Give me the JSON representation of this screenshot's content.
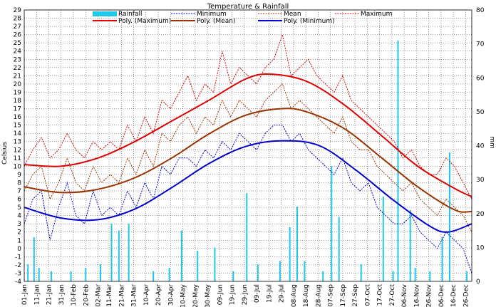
{
  "colors": {
    "rainfall": "#1ec8e8",
    "minimum": "#0000cc",
    "mean": "#993300",
    "maximum": "#cc0000",
    "poly_maximum": "#dd0000",
    "poly_mean": "#993300",
    "poly_minimum": "#0000cc",
    "grid": "#000000"
  },
  "chart_data": {
    "type": "line",
    "title": "Temperature & Rainfall",
    "ylabel": "Celsius",
    "y2label": "mm",
    "ylim": [
      -4,
      29
    ],
    "y2lim": [
      0,
      80
    ],
    "y_ticks": [
      -4,
      -3,
      -2,
      -1,
      0,
      1,
      2,
      3,
      4,
      5,
      6,
      7,
      8,
      9,
      10,
      11,
      12,
      13,
      14,
      15,
      16,
      17,
      18,
      19,
      20,
      21,
      22,
      23,
      24,
      25,
      26,
      27,
      28,
      29
    ],
    "y2_ticks": [
      0,
      10,
      20,
      30,
      40,
      50,
      60,
      70,
      80
    ],
    "x_ticks": [
      {
        "label": "01-Jan",
        "day": 0
      },
      {
        "label": "11-Jan",
        "day": 10
      },
      {
        "label": "21-Jan",
        "day": 20
      },
      {
        "label": "31-Jan",
        "day": 30
      },
      {
        "label": "10-Feb",
        "day": 40
      },
      {
        "label": "20-Feb",
        "day": 50
      },
      {
        "label": "02-Mar",
        "day": 60
      },
      {
        "label": "11-Mar",
        "day": 69
      },
      {
        "label": "21-Mar",
        "day": 79
      },
      {
        "label": "31-Mar",
        "day": 89
      },
      {
        "label": "10-Apr",
        "day": 99
      },
      {
        "label": "20-Apr",
        "day": 109
      },
      {
        "label": "30-Apr",
        "day": 119
      },
      {
        "label": "10-May",
        "day": 129
      },
      {
        "label": "20-May",
        "day": 139
      },
      {
        "label": "30-May",
        "day": 149
      },
      {
        "label": "09-Jun",
        "day": 159
      },
      {
        "label": "19-Jun",
        "day": 169
      },
      {
        "label": "29-Jun",
        "day": 179
      },
      {
        "label": "09-Jul",
        "day": 189
      },
      {
        "label": "19-Jul",
        "day": 199
      },
      {
        "label": "29-Jul",
        "day": 209
      },
      {
        "label": "08-Aug",
        "day": 219
      },
      {
        "label": "18-Aug",
        "day": 229
      },
      {
        "label": "28-Aug",
        "day": 239
      },
      {
        "label": "07-Sep",
        "day": 249
      },
      {
        "label": "17-Sep",
        "day": 259
      },
      {
        "label": "27-Sep",
        "day": 269
      },
      {
        "label": "07-Oct",
        "day": 279
      },
      {
        "label": "17-Oct",
        "day": 289
      },
      {
        "label": "27-Oct",
        "day": 299
      },
      {
        "label": "06-Nov",
        "day": 309
      },
      {
        "label": "16-Nov",
        "day": 319
      },
      {
        "label": "26-Nov",
        "day": 329
      },
      {
        "label": "06-Dec",
        "day": 339
      },
      {
        "label": "16-Dec",
        "day": 349
      },
      {
        "label": "26-Dec",
        "day": 359
      }
    ],
    "legend": [
      {
        "key": "rainfall",
        "label": "Rainfall",
        "style": "bar"
      },
      {
        "key": "minimum",
        "label": "Minimum",
        "style": "dotted"
      },
      {
        "key": "mean",
        "label": "Mean",
        "style": "dotted"
      },
      {
        "key": "maximum",
        "label": "Maximum",
        "style": "dotted"
      },
      {
        "key": "poly_maximum",
        "label": "Poly. (Maximum)",
        "style": "solid"
      },
      {
        "key": "poly_mean",
        "label": "Poly. (Mean)",
        "style": "solid"
      },
      {
        "key": "poly_minimum",
        "label": "Poly. (Minimum)",
        "style": "solid"
      }
    ],
    "legend_position": "top",
    "grid": true,
    "series_daily_sampled": {
      "day": [
        0,
        7,
        14,
        21,
        28,
        35,
        42,
        49,
        56,
        63,
        70,
        77,
        84,
        91,
        98,
        105,
        112,
        119,
        126,
        133,
        140,
        147,
        154,
        161,
        168,
        175,
        182,
        189,
        196,
        203,
        210,
        217,
        224,
        231,
        238,
        245,
        252,
        259,
        266,
        273,
        280,
        287,
        294,
        301,
        308,
        315,
        322,
        329,
        336,
        343,
        350,
        357,
        364
      ],
      "maximum": [
        10,
        12,
        13.5,
        11,
        12,
        14,
        12,
        11,
        13,
        12,
        13,
        12,
        15,
        13,
        16,
        14,
        18,
        17,
        19,
        21,
        18,
        20,
        19,
        24,
        20,
        22,
        21,
        20,
        22,
        23,
        26,
        21,
        22,
        23,
        21,
        20,
        19,
        21,
        18,
        17,
        16,
        15,
        14,
        13,
        11,
        12,
        10,
        9,
        9,
        11,
        10,
        8,
        6
      ],
      "mean": [
        7,
        9,
        10,
        6,
        8,
        11,
        8,
        7,
        10,
        8,
        9,
        8,
        11,
        9,
        12,
        10,
        14,
        13,
        15,
        16,
        14,
        16,
        15,
        18,
        16,
        18,
        17,
        16,
        18,
        19,
        20,
        17,
        18,
        17,
        16,
        15,
        14,
        16,
        13,
        12,
        12,
        10,
        9,
        8,
        7,
        8,
        6,
        5,
        4,
        6,
        5,
        4,
        2
      ],
      "minimum": [
        3,
        6,
        7,
        1,
        5,
        8,
        4,
        3,
        7,
        4,
        5,
        4,
        7,
        5,
        8,
        6,
        10,
        9,
        11,
        11,
        10,
        12,
        11,
        13,
        12,
        14,
        13,
        12,
        14,
        15,
        15,
        13,
        14,
        12,
        11,
        10,
        9,
        11,
        8,
        7,
        8,
        5,
        4,
        3,
        3,
        4,
        2,
        1,
        0,
        2,
        1,
        0,
        -3
      ]
    },
    "rainfall_events": [
      {
        "day": 3,
        "mm": 5
      },
      {
        "day": 8,
        "mm": 13
      },
      {
        "day": 12,
        "mm": 4
      },
      {
        "day": 22,
        "mm": 3
      },
      {
        "day": 38,
        "mm": 3
      },
      {
        "day": 50,
        "mm": 4
      },
      {
        "day": 62,
        "mm": 5
      },
      {
        "day": 71,
        "mm": 17
      },
      {
        "day": 77,
        "mm": 15
      },
      {
        "day": 85,
        "mm": 17
      },
      {
        "day": 105,
        "mm": 3
      },
      {
        "day": 118,
        "mm": 4
      },
      {
        "day": 128,
        "mm": 15
      },
      {
        "day": 141,
        "mm": 9
      },
      {
        "day": 155,
        "mm": 10
      },
      {
        "day": 170,
        "mm": 3
      },
      {
        "day": 181,
        "mm": 26
      },
      {
        "day": 190,
        "mm": 5
      },
      {
        "day": 208,
        "mm": 6
      },
      {
        "day": 216,
        "mm": 16
      },
      {
        "day": 222,
        "mm": 22
      },
      {
        "day": 228,
        "mm": 6
      },
      {
        "day": 243,
        "mm": 3
      },
      {
        "day": 250,
        "mm": 34
      },
      {
        "day": 256,
        "mm": 19
      },
      {
        "day": 274,
        "mm": 5
      },
      {
        "day": 292,
        "mm": 25
      },
      {
        "day": 300,
        "mm": 3
      },
      {
        "day": 304,
        "mm": 71
      },
      {
        "day": 314,
        "mm": 21
      },
      {
        "day": 318,
        "mm": 4
      },
      {
        "day": 330,
        "mm": 3
      },
      {
        "day": 340,
        "mm": 13
      },
      {
        "day": 346,
        "mm": 38
      },
      {
        "day": 360,
        "mm": 3
      }
    ],
    "trend": {
      "maximum": {
        "day": [
          0,
          30,
          60,
          90,
          120,
          150,
          180,
          200,
          230,
          260,
          290,
          320,
          350,
          364
        ],
        "value": [
          10.2,
          10,
          11,
          13,
          15.5,
          18,
          20.6,
          21.2,
          20.3,
          17.5,
          13.8,
          10,
          7.3,
          6.3
        ]
      },
      "mean": {
        "day": [
          0,
          30,
          60,
          90,
          120,
          150,
          180,
          210,
          230,
          260,
          290,
          320,
          350,
          364
        ],
        "value": [
          7.5,
          6.8,
          7.2,
          8.6,
          11,
          13.9,
          16.2,
          17,
          16.6,
          14.6,
          11.1,
          7.5,
          4.7,
          4.5
        ]
      },
      "minimum": {
        "day": [
          0,
          30,
          60,
          90,
          120,
          150,
          180,
          210,
          240,
          270,
          300,
          330,
          345,
          364
        ],
        "value": [
          5,
          3.7,
          3.5,
          4.8,
          7.4,
          10.3,
          12.4,
          13.1,
          12.5,
          9.5,
          5.9,
          2.7,
          2,
          3
        ]
      }
    }
  }
}
